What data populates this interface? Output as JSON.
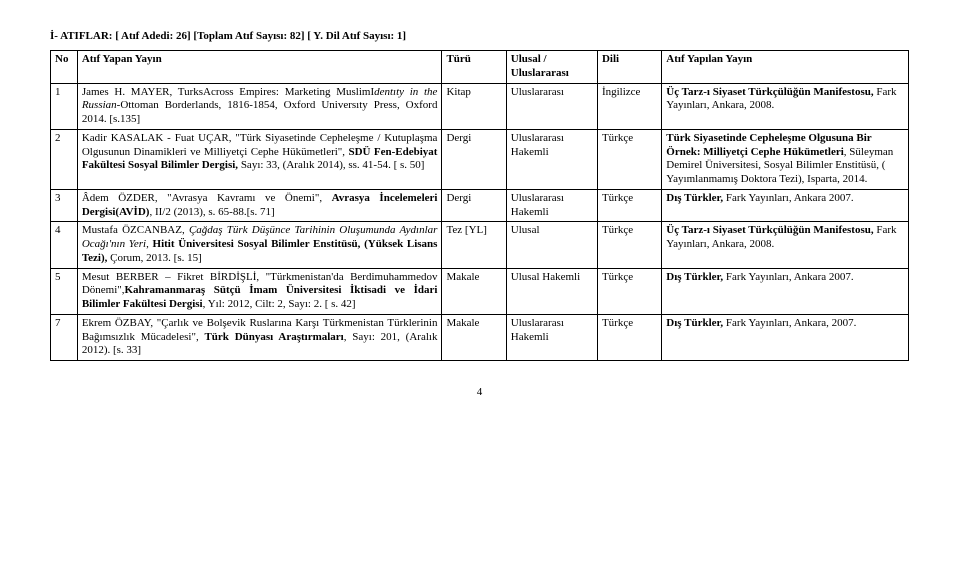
{
  "header": "İ- ATIFLAR: [ Atıf Adedi: 26]  [Toplam Atıf Sayısı: 82]  [ Y. Dil Atıf Sayısı: 1]",
  "columns": {
    "no": "No",
    "pub": "Atıf Yapan Yayın",
    "type": "Türü",
    "scope": "Ulusal / Uluslararası",
    "lang": "Dili",
    "cited": "Atıf Yapılan Yayın"
  },
  "rows": [
    {
      "no": "1",
      "pub_html": "James H. MAYER, TurksAcross Empires: Marketing MuslimI<i>dentıty in the Russian-</i>Ottoman Borderlands, 1816-1854, Oxford Universıty Press, Oxford 2014. [s.135]",
      "type": "Kitap",
      "scope": "Uluslararası",
      "lang": "İngilizce",
      "cited_html": "<b>Üç Tarz-ı Siyaset Türkçülüğün Manifestosu,</b> Fark Yayınları, Ankara, 2008."
    },
    {
      "no": "2",
      "pub_html": "Kadir KASALAK - Fuat UÇAR, \"Türk Siyasetinde Cepheleşme / Kutuplaşma Olgusunun Dinamikleri ve Milliyetçi Cephe Hükümetleri\", <b>SDÜ Fen-Edebiyat Fakültesi Sosyal Bilimler Dergisi,</b> Sayı: 33, (Aralık 2014), ss. 41-54. [ s. 50]",
      "type": "Dergi",
      "scope": "Uluslararası Hakemli",
      "lang": "Türkçe",
      "cited_html": "<b>Türk Siyasetinde Cepheleşme Olgusuna Bir Örnek: Milliyetçi Cephe Hükümetleri</b>, Süleyman Demirel Üniversitesi, Sosyal Bilimler Enstitüsü, ( Yayımlanmamış Doktora Tezi), Isparta, 2014."
    },
    {
      "no": "3",
      "pub_html": "Âdem ÖZDER, \"Avrasya Kavramı ve Önemi\", <b>Avrasya İncelemeleri Dergisi(AVİD)</b>, II/2 (2013), s. 65-88.[s. 71]",
      "type": "Dergi",
      "scope": "Uluslararası Hakemli",
      "lang": "Türkçe",
      "cited_html": "<b>Dış Türkler,</b> Fark Yayınları, Ankara 2007."
    },
    {
      "no": "4",
      "pub_html": "Mustafa ÖZCANBAZ, <i>Çağdaş Türk Düşünce Tarihinin Oluşumunda Aydınlar Ocağı'nın Yeri</i>, <b>Hitit Üniversitesi Sosyal Bilimler Enstitüsü, (Yüksek Lisans Tezi),</b> Çorum, 2013. [s. 15]",
      "type": "Tez [YL]",
      "scope": "Ulusal",
      "lang": "Türkçe",
      "cited_html": "<b>Üç Tarz-ı Siyaset Türkçülüğün Manifestosu,</b> Fark Yayınları, Ankara, 2008."
    },
    {
      "no": "5",
      "pub_html": "Mesut BERBER – Fikret BİRDİŞLİ, \"Türkmenistan'da Berdimuhammedov Dönemi\",<b>Kahramanmaraş Sütçü İmam Üniversitesi İktisadi ve İdari Bilimler Fakültesi Dergisi</b>, Yıl: 2012, Cilt: 2, Sayı: 2. [ s. 42]",
      "type": "Makale",
      "scope": "Ulusal Hakemli",
      "lang": "Türkçe",
      "cited_html": "<b>Dış Türkler,</b> Fark Yayınları, Ankara 2007."
    },
    {
      "no": "7",
      "pub_html": "Ekrem ÖZBAY, \"Çarlık ve Bolşevik Ruslarına Karşı Türkmenistan Türklerinin Bağımsızlık Mücadelesi\", <b>Türk Dünyası Araştırmaları</b>, Sayı: 201, (Aralık 2012). [s. 33]",
      "type": "Makale",
      "scope": "Uluslararası Hakemli",
      "lang": "Türkçe",
      "cited_html": "<b>Dış Türkler,</b> Fark Yayınları, Ankara, 2007."
    }
  ],
  "page_number": "4"
}
